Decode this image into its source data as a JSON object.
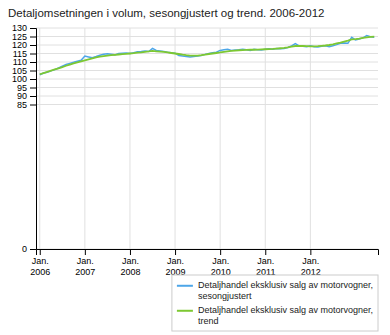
{
  "chart_data": {
    "type": "line",
    "title": "Detaljomsetningen i volum, sesongjustert og trend. 2006-2012",
    "categories": [
      "Jan.\n2006",
      null,
      null,
      null,
      null,
      null,
      null,
      null,
      null,
      null,
      null,
      null,
      "Jan.\n2007",
      null,
      null,
      null,
      null,
      null,
      null,
      null,
      null,
      null,
      null,
      null,
      "Jan.\n2008",
      null,
      null,
      null,
      null,
      null,
      null,
      null,
      null,
      null,
      null,
      null,
      "Jan.\n2009",
      null,
      null,
      null,
      null,
      null,
      null,
      null,
      null,
      null,
      null,
      null,
      "Jan.\n2010",
      null,
      null,
      null,
      null,
      null,
      null,
      null,
      null,
      null,
      null,
      null,
      "Jan.\n2011",
      null,
      null,
      null,
      null,
      null,
      null,
      null,
      null,
      null,
      null,
      null,
      "Jan.\n2012",
      null,
      null,
      null,
      null,
      null,
      null,
      null,
      null,
      null,
      null,
      null,
      null,
      null,
      null,
      null,
      null,
      null
    ],
    "series": [
      {
        "name": "Detaljhandel eksklusiv salg av motorvogner,\nsesongjustert",
        "color": "#4da6e8",
        "values": [
          102.5,
          103.5,
          104.0,
          104.8,
          105.5,
          106.5,
          107.5,
          108.5,
          109.2,
          109.8,
          110.5,
          111.0,
          113.5,
          113.0,
          112.5,
          113.2,
          114.0,
          114.5,
          114.8,
          114.5,
          114.2,
          115.0,
          115.2,
          115.3,
          115.0,
          115.5,
          116.0,
          116.2,
          116.5,
          116.2,
          118.0,
          116.8,
          116.5,
          116.2,
          115.8,
          115.5,
          115.2,
          113.8,
          113.5,
          113.2,
          113.0,
          113.2,
          113.5,
          113.8,
          114.5,
          115.0,
          115.5,
          115.8,
          116.8,
          117.2,
          117.5,
          116.8,
          117.0,
          117.2,
          117.5,
          117.2,
          116.8,
          117.5,
          117.2,
          117.0,
          117.5,
          117.8,
          117.5,
          118.0,
          117.8,
          118.0,
          118.5,
          119.5,
          120.8,
          119.5,
          119.2,
          119.0,
          119.5,
          119.0,
          118.8,
          119.2,
          119.5,
          119.0,
          119.5,
          120.2,
          121.0,
          121.2,
          121.0,
          124.5,
          123.0,
          123.5,
          124.2,
          125.5,
          124.8,
          124.5
        ]
      },
      {
        "name": "Detaljhandel eksklusiv salg av motorvogner,\ntrend",
        "color": "#7dc832",
        "values": [
          102.8,
          103.5,
          104.2,
          104.9,
          105.6,
          106.3,
          107.0,
          107.8,
          108.5,
          109.2,
          109.8,
          110.4,
          111.0,
          111.6,
          112.2,
          112.7,
          113.1,
          113.5,
          113.8,
          114.0,
          114.2,
          114.4,
          114.6,
          114.8,
          115.0,
          115.2,
          115.5,
          115.7,
          116.0,
          116.2,
          116.5,
          116.3,
          116.1,
          115.9,
          115.6,
          115.3,
          115.0,
          114.7,
          114.3,
          114.0,
          113.8,
          113.7,
          113.8,
          114.0,
          114.3,
          114.7,
          115.0,
          115.3,
          115.6,
          116.0,
          116.3,
          116.5,
          116.7,
          116.9,
          117.0,
          117.1,
          117.2,
          117.2,
          117.3,
          117.4,
          117.5,
          117.6,
          117.7,
          117.9,
          118.1,
          118.3,
          118.6,
          119.0,
          119.4,
          119.5,
          119.4,
          119.3,
          119.2,
          119.2,
          119.3,
          119.5,
          119.7,
          120.0,
          120.4,
          120.9,
          121.4,
          122.0,
          122.6,
          123.3,
          123.5,
          123.8,
          124.2,
          124.5,
          124.8,
          124.9
        ]
      }
    ],
    "ylim": [
      0,
      130
    ],
    "yticks": [
      0,
      85,
      90,
      95,
      100,
      105,
      110,
      115,
      120,
      125,
      130
    ],
    "grid": true,
    "legend": "lower right"
  }
}
